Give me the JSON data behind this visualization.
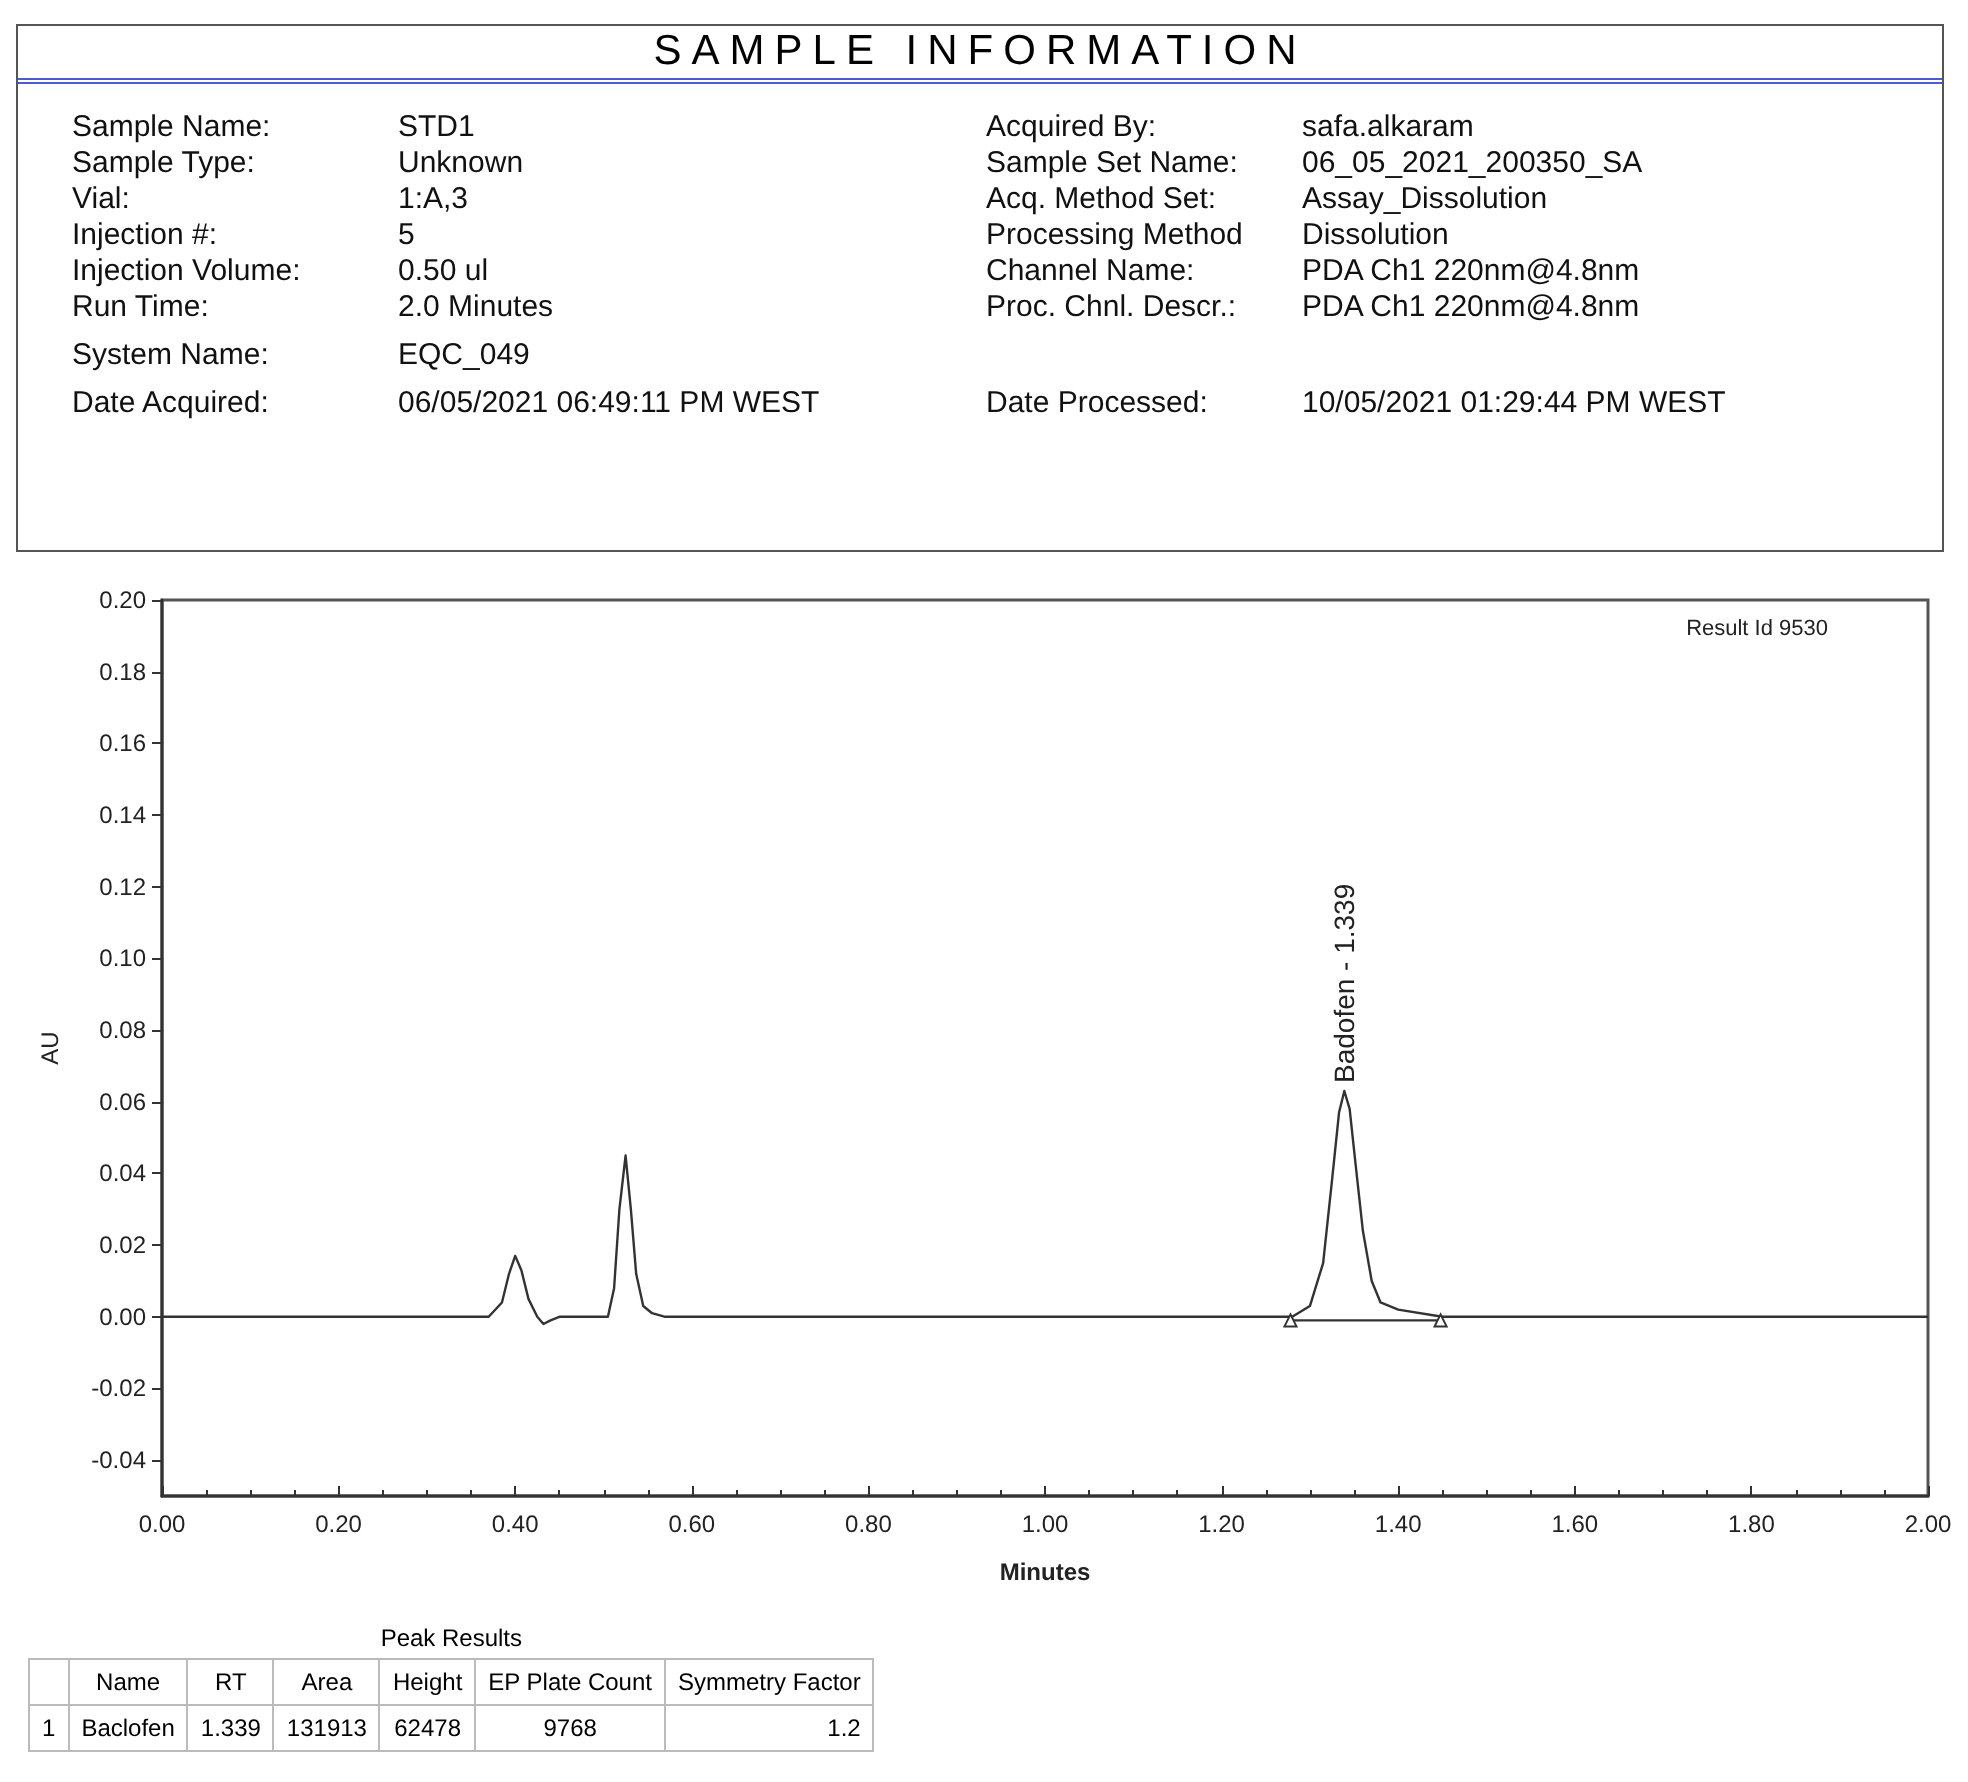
{
  "chart_data": [
    {
      "type": "other",
      "title": "SAMPLE INFORMATION",
      "annotations": [
        "Sample Name:",
        "STD1",
        "Sample Type:",
        "Unknown",
        "Vial:",
        "1:A,3",
        "Injection #:",
        "5",
        "Injection Volume:",
        "0.50 ul",
        "Run Time:",
        "2.0 Minutes",
        "System Name:",
        "EQC_049",
        "Date Acquired:",
        "06/05/2021 06:49:11 PM WEST",
        "Acquired By:",
        "safa.alkaram",
        "Sample Set Name:",
        "06_05_2021_200350_SA",
        "Acq. Method Set:",
        "Assay_Dissolution",
        "Processing Method",
        "Dissolution",
        "Channel Name:",
        "PDA Ch1 220nm@4.8nm",
        "Proc. Chnl. Descr.:",
        "PDA Ch1 220nm@4.8nm",
        "Date Processed:",
        "10/05/2021 01:29:44 PM WEST"
      ]
    },
    {
      "type": "line",
      "xlabel": "Minutes",
      "ylabel": "AU",
      "marker": "none",
      "grid": false,
      "xlim": [
        0,
        2
      ],
      "ylim": [
        -0.05,
        0.2
      ],
      "xticks": [
        {
          "value": 0,
          "label": "0.00"
        },
        {
          "value": 0.2,
          "label": "0.20"
        },
        {
          "value": 0.4,
          "label": "0.40"
        },
        {
          "value": 0.6,
          "label": "0.60"
        },
        {
          "value": 0.8,
          "label": "0.80"
        },
        {
          "value": 1,
          "label": "1.00"
        },
        {
          "value": 1.2,
          "label": "1.20"
        },
        {
          "value": 1.4,
          "label": "1.40"
        },
        {
          "value": 1.6,
          "label": "1.60"
        },
        {
          "value": 1.8,
          "label": "1.80"
        },
        {
          "value": 2,
          "label": "2.00"
        }
      ],
      "yticks": [
        {
          "value": -0.04,
          "label": "-0.04"
        },
        {
          "value": -0.02,
          "label": "-0.02"
        },
        {
          "value": 0,
          "label": "0.00"
        },
        {
          "value": 0.02,
          "label": "0.02"
        },
        {
          "value": 0.04,
          "label": "0.04"
        },
        {
          "value": 0.06,
          "label": "0.06"
        },
        {
          "value": 0.08,
          "label": "0.08"
        },
        {
          "value": 0.1,
          "label": "0.10"
        },
        {
          "value": 0.12,
          "label": "0.12"
        },
        {
          "value": 0.14,
          "label": "0.14"
        },
        {
          "value": 0.16,
          "label": "0.16"
        },
        {
          "value": 0.18,
          "label": "0.18"
        },
        {
          "value": 0.2,
          "label": "0.20"
        }
      ],
      "series": [
        {
          "color": "#333333",
          "x": [
            0,
            0.37,
            0.385,
            0.393,
            0.4,
            0.407,
            0.415,
            0.425,
            0.432,
            0.44,
            0.45,
            0.505,
            0.512,
            0.518,
            0.525,
            0.531,
            0.537,
            0.545,
            0.555,
            0.57,
            1.28,
            1.3,
            1.315,
            1.325,
            1.333,
            1.339,
            1.345,
            1.352,
            1.36,
            1.37,
            1.38,
            1.4,
            1.45,
            2
          ],
          "values": [
            0,
            0,
            0.004,
            0.012,
            0.017,
            0.013,
            0.005,
            0,
            -0.002,
            -0.001,
            0,
            0,
            0.008,
            0.03,
            0.045,
            0.03,
            0.012,
            0.003,
            0.001,
            0,
            0,
            0.003,
            0.015,
            0.038,
            0.057,
            0.063,
            0.058,
            0.042,
            0.024,
            0.01,
            0.004,
            0.002,
            0,
            0
          ]
        },
        {
          "color": "#333333",
          "marker": "triangle",
          "x": [
            1.278,
            1.448
          ],
          "values": [
            -0.001,
            -0.001
          ]
        }
      ],
      "annotations": [
        "Result Id 9530",
        {
          "text": "Badofen - 1.339",
          "x": 1.339,
          "y": 0.063
        }
      ]
    },
    {
      "type": "other",
      "title": "Peak Results",
      "annotations": [
        "Name",
        "RT",
        "Area",
        "Height",
        "EP Plate Count",
        "Symmetry Factor",
        "1",
        "Baclofen",
        "1.339",
        "131913",
        "62478",
        "9768",
        "1.2"
      ]
    }
  ]
}
